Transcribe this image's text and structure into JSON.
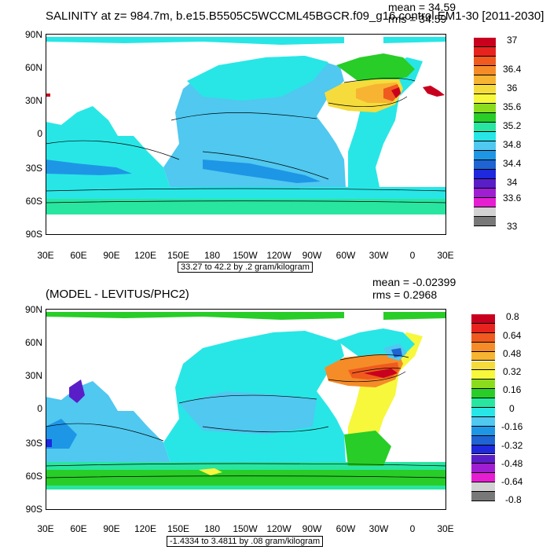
{
  "panel1": {
    "title": "SALINITY at z= 984.7m, b.e15.B5505C5WCCML45BGCR.f09_g16.control.EM1-30 [2011-2030]",
    "mean": "mean = 34.59",
    "rms": "rms = 34.59",
    "range_label": "33.27 to 42.2 by .2 gram/kilogram",
    "lat_labels": [
      "90N",
      "60N",
      "30N",
      "0",
      "30S",
      "60S",
      "90S"
    ],
    "lon_labels": [
      "30E",
      "60E",
      "90E",
      "120E",
      "150E",
      "180",
      "150W",
      "120W",
      "90W",
      "60W",
      "30W",
      "0",
      "30E"
    ],
    "colorbar": {
      "labels": [
        "37",
        "36.4",
        "36",
        "35.6",
        "35.2",
        "34.8",
        "34.4",
        "34",
        "33.6",
        "33"
      ],
      "colors": [
        "#c8001e",
        "#e8231e",
        "#f05a1e",
        "#f58c28",
        "#f7b432",
        "#f5dc3c",
        "#f7f73c",
        "#8cdc1e",
        "#28cd28",
        "#28e6a0",
        "#28e6e6",
        "#50c8f0",
        "#1e96e6",
        "#1e64d2",
        "#1e28dc",
        "#5a1ec8",
        "#a01ed2",
        "#e61ed2",
        "#d2d2d2",
        "#787878"
      ]
    }
  },
  "panel2": {
    "title": "(MODEL - LEVITUS/PHC2)",
    "mean": "mean = -0.02399",
    "rms": "rms = 0.2968",
    "range_label": "-1.4334 to 3.4811 by .08 gram/kilogram",
    "lat_labels": [
      "90N",
      "60N",
      "30N",
      "0",
      "30S",
      "60S",
      "90S"
    ],
    "lon_labels": [
      "30E",
      "60E",
      "90E",
      "120E",
      "150E",
      "180",
      "150W",
      "120W",
      "90W",
      "60W",
      "30W",
      "0",
      "30E"
    ],
    "colorbar": {
      "labels": [
        "0.8",
        "0.64",
        "0.48",
        "0.32",
        "0.16",
        "0",
        "-0.16",
        "-0.32",
        "-0.48",
        "-0.64",
        "-0.8"
      ],
      "colors": [
        "#c8001e",
        "#e8231e",
        "#f05a1e",
        "#f58c28",
        "#f7b432",
        "#f5dc3c",
        "#f7f73c",
        "#8cdc1e",
        "#28cd28",
        "#28e6a0",
        "#28e6e6",
        "#50c8f0",
        "#1e96e6",
        "#1e64d2",
        "#1e28dc",
        "#5a1ec8",
        "#a01ed2",
        "#e61ed2",
        "#d2d2d2",
        "#787878"
      ]
    }
  }
}
